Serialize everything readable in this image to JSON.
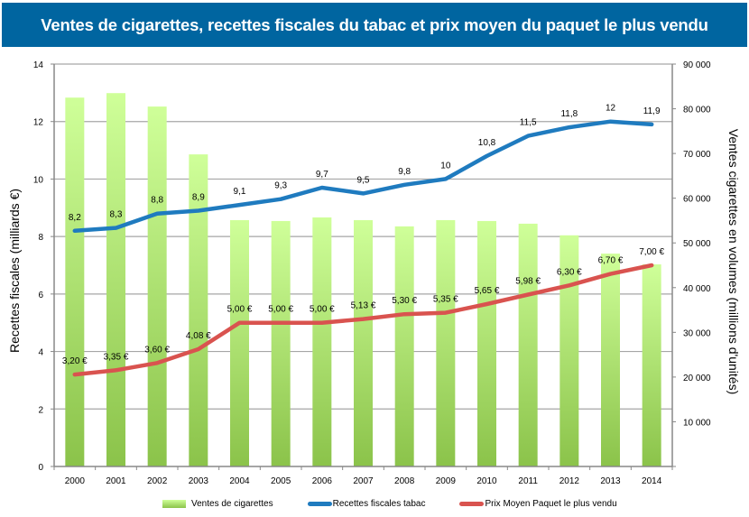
{
  "title": "Ventes de cigarettes, recettes fiscales du tabac et prix moyen du paquet le plus vendu",
  "colors": {
    "title_bg": "#0065a0",
    "bars_top": "#cfff99",
    "bars_bottom": "#8bc34a",
    "recettes_line": "#1f7bbf",
    "prix_line": "#d9534f",
    "grid": "#a6a6a6"
  },
  "chart_data": {
    "type": "bar+line",
    "title": "Ventes de cigarettes, recettes fiscales du tabac et prix moyen du paquet le plus vendu",
    "categories": [
      "2000",
      "2001",
      "2002",
      "2003",
      "2004",
      "2005",
      "2006",
      "2007",
      "2008",
      "2009",
      "2010",
      "2011",
      "2012",
      "2013",
      "2014"
    ],
    "y_left": {
      "label": "Recettes fiscales (milliards €)",
      "range": [
        0,
        14
      ],
      "ticks": [
        "0",
        "2",
        "4",
        "6",
        "8",
        "10",
        "12",
        "14"
      ]
    },
    "y_right": {
      "label": "Ventes cigarettes en volumes (millions d'unités)",
      "range": [
        0,
        90000
      ],
      "ticks": [
        "",
        "10 000",
        "20 000",
        "30 000",
        "40 000",
        "50 000",
        "60 000",
        "70 000",
        "80 000",
        "90 000"
      ]
    },
    "grid": true,
    "legend_position": "bottom",
    "series": [
      {
        "name": "Ventes de cigarettes",
        "type": "bar",
        "axis": "right",
        "values": [
          82500,
          83500,
          80500,
          69800,
          55100,
          54900,
          55700,
          55100,
          53700,
          55100,
          54900,
          54300,
          51700,
          47600,
          45200
        ]
      },
      {
        "name": "Recettes fiscales tabac",
        "type": "line",
        "axis": "left",
        "values": [
          8.2,
          8.3,
          8.8,
          8.9,
          9.1,
          9.3,
          9.7,
          9.5,
          9.8,
          10,
          10.8,
          11.5,
          11.8,
          12,
          11.9
        ],
        "labels": [
          "8,2",
          "8,3",
          "8,8",
          "8,9",
          "9,1",
          "9,3",
          "9,7",
          "9,5",
          "9,8",
          "10",
          "10,8",
          "11,5",
          "11,8",
          "12",
          "11,9"
        ]
      },
      {
        "name": "Prix Moyen Paquet le plus vendu",
        "type": "line",
        "axis": "left",
        "values": [
          3.2,
          3.35,
          3.6,
          4.08,
          5.0,
          5.0,
          5.0,
          5.13,
          5.3,
          5.35,
          5.65,
          5.98,
          6.3,
          6.7,
          7.0
        ],
        "labels": [
          "3,20 €",
          "3,35 €",
          "3,60 €",
          "4,08 €",
          "5,00 €",
          "5,00 €",
          "5,00 €",
          "5,13 €",
          "5,30 €",
          "5,35 €",
          "5,65 €",
          "5,98 €",
          "6,30 €",
          "6,70 €",
          "7,00 €"
        ]
      }
    ]
  }
}
